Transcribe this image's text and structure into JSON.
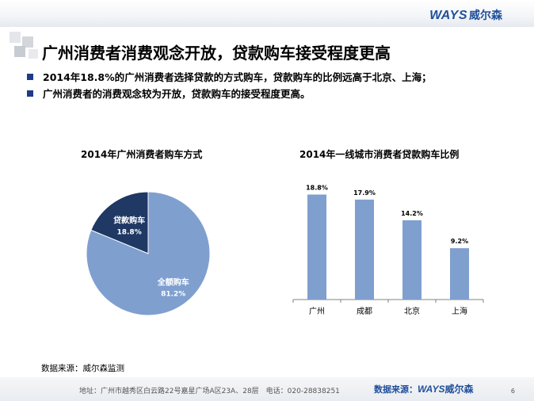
{
  "header": {
    "brand_latin": "WAYS",
    "brand_cn": "威尔森"
  },
  "title": "广州消费者消费观念开放，贷款购车接受程度更高",
  "bullets": [
    "2014年18.8%的广州消费者选择贷款的方式购车，贷款购车的比例远高于北京、上海；",
    "广州消费者的消费观念较为开放，贷款购车的接受程度更高。"
  ],
  "chart_data": [
    {
      "type": "pie",
      "title": "2014年广州消费者购车方式",
      "slices": [
        {
          "label": "贷款购车",
          "value": 18.8,
          "value_label": "18.8%",
          "color": "#1f3864"
        },
        {
          "label": "全额购车",
          "value": 81.2,
          "value_label": "81.2%",
          "color": "#7f9fcf"
        }
      ]
    },
    {
      "type": "bar",
      "title": "2014年一线城市消费者贷款购车比例",
      "categories": [
        "广州",
        "成都",
        "北京",
        "上海"
      ],
      "values": [
        18.8,
        17.9,
        14.2,
        9.2
      ],
      "value_labels": [
        "18.8%",
        "17.9%",
        "14.2%",
        "9.2%"
      ],
      "ylim": [
        0,
        21
      ],
      "color": "#7f9fcf",
      "grid": false
    }
  ],
  "source": "数据来源：威尔森监测",
  "footer": {
    "address": "地址：广州市越秀区白云路22号嘉星广场A区23A、28层　电话：020-28838251",
    "source_label": "数据来源：",
    "brand_latin": "WAYS",
    "brand_cn": "威尔森",
    "page_number": "6"
  }
}
